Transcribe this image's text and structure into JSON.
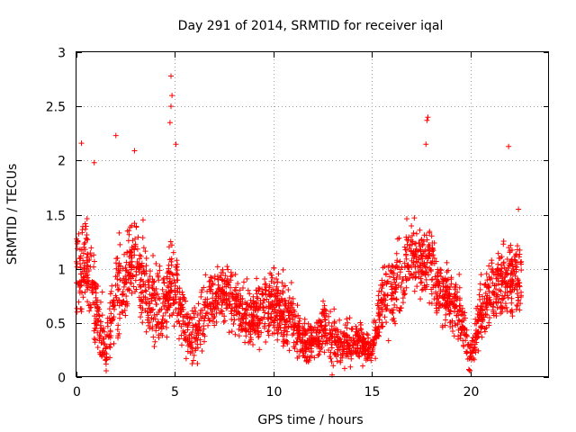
{
  "chart_data": {
    "type": "scatter",
    "title": "Day 291 of 2014, SRMTID for receiver iqal",
    "xlabel": "GPS time / hours",
    "ylabel": "SRMTID / TECUs",
    "xlim": [
      0,
      24
    ],
    "ylim": [
      0,
      3
    ],
    "xticks": [
      0,
      5,
      10,
      15,
      20
    ],
    "yticks": [
      0,
      0.5,
      1,
      1.5,
      2,
      2.5,
      3
    ],
    "xtick_labels": [
      "0",
      "5",
      "10",
      "15",
      "20"
    ],
    "ytick_labels": [
      "0",
      "0.5",
      "1",
      "1.5",
      "2",
      "2.5",
      "3"
    ],
    "grid": true,
    "marker": "+",
    "color": "#ff0000",
    "notable_points": [
      {
        "x": 4.8,
        "y": 2.78
      },
      {
        "x": 4.85,
        "y": 2.6
      },
      {
        "x": 4.8,
        "y": 2.5
      },
      {
        "x": 4.75,
        "y": 2.35
      },
      {
        "x": 2.0,
        "y": 2.23
      },
      {
        "x": 0.25,
        "y": 2.16
      },
      {
        "x": 5.05,
        "y": 2.15
      },
      {
        "x": 2.95,
        "y": 2.09
      },
      {
        "x": 0.9,
        "y": 1.98
      },
      {
        "x": 17.85,
        "y": 2.4
      },
      {
        "x": 17.8,
        "y": 2.37
      },
      {
        "x": 17.75,
        "y": 2.15
      },
      {
        "x": 21.95,
        "y": 2.13
      },
      {
        "x": 22.45,
        "y": 1.55
      }
    ],
    "envelope": {
      "x": [
        0,
        0.5,
        1,
        1.5,
        2,
        2.5,
        3,
        3.5,
        4,
        4.5,
        5,
        5.5,
        6,
        6.5,
        7,
        7.5,
        8,
        8.5,
        9,
        9.5,
        10,
        10.5,
        11,
        11.5,
        12,
        12.5,
        13,
        13.5,
        14,
        14.5,
        15,
        15.5,
        16,
        16.5,
        17,
        17.5,
        18,
        18.5,
        19,
        19.5,
        20,
        20.5,
        21,
        21.5,
        22,
        22.5
      ],
      "center": [
        1.0,
        1.1,
        0.6,
        0.25,
        0.8,
        0.9,
        1.1,
        0.8,
        0.6,
        0.7,
        0.9,
        0.45,
        0.35,
        0.6,
        0.75,
        0.8,
        0.7,
        0.6,
        0.55,
        0.65,
        0.7,
        0.6,
        0.5,
        0.3,
        0.35,
        0.45,
        0.35,
        0.3,
        0.35,
        0.3,
        0.25,
        0.7,
        0.8,
        0.9,
        1.1,
        1.1,
        1.05,
        0.75,
        0.7,
        0.6,
        0.2,
        0.55,
        0.8,
        0.85,
        0.9,
        0.9
      ],
      "spread": [
        0.5,
        0.5,
        0.5,
        0.3,
        0.5,
        0.5,
        0.5,
        0.5,
        0.45,
        0.45,
        0.5,
        0.3,
        0.3,
        0.35,
        0.35,
        0.3,
        0.3,
        0.3,
        0.3,
        0.35,
        0.35,
        0.35,
        0.3,
        0.25,
        0.25,
        0.3,
        0.3,
        0.25,
        0.25,
        0.2,
        0.2,
        0.35,
        0.4,
        0.45,
        0.4,
        0.4,
        0.4,
        0.35,
        0.35,
        0.35,
        0.2,
        0.35,
        0.35,
        0.4,
        0.4,
        0.4
      ]
    },
    "points_per_hour": 120,
    "x_end": 22.6
  }
}
